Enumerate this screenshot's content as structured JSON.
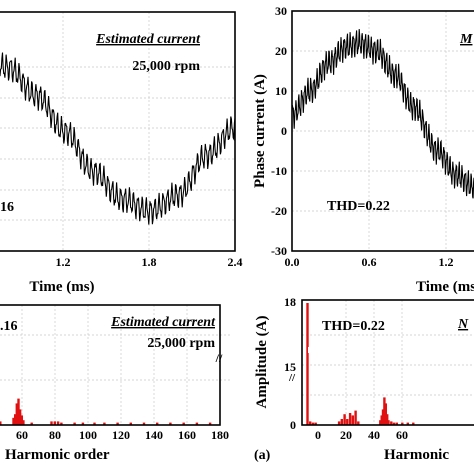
{
  "chart_data": [
    {
      "type": "line",
      "panel": "top-left",
      "xlabel": "Time (ms)",
      "x_ticks": [
        "1.2",
        "1.8",
        "2.4"
      ],
      "xlim": [
        0.6,
        2.4
      ],
      "ylim": [
        -30,
        30
      ],
      "legend": "Estimated current",
      "legend_color": "#1a9a3a",
      "speed_label": "25,000 rpm",
      "thd_label": "16",
      "line_color": "#000000",
      "series": [
        {
          "x": [
            0.6,
            0.8,
            1.0,
            1.2,
            1.4,
            1.6,
            1.8,
            2.0,
            2.2,
            2.4
          ],
          "y": [
            19,
            16,
            9,
            0,
            -10,
            -17,
            -20,
            -16,
            -6,
            1
          ]
        }
      ]
    },
    {
      "type": "line",
      "panel": "top-right",
      "xlabel": "Time (ms)",
      "ylabel": "Phase current (A)",
      "x_ticks": [
        "0.0",
        "0.6",
        "1.2"
      ],
      "y_ticks": [
        "-30",
        "-20",
        "-10",
        "0",
        "10",
        "20",
        "30"
      ],
      "xlim": [
        0,
        1.5
      ],
      "ylim": [
        -30,
        30
      ],
      "legend": "M",
      "legend_color": "#1f2fd0",
      "thd_label": "THD=0.22",
      "line_color": "#000000",
      "series": [
        {
          "x": [
            0.0,
            0.15,
            0.3,
            0.45,
            0.55,
            0.7,
            0.85,
            1.0,
            1.2,
            1.35,
            1.5
          ],
          "y": [
            4,
            10,
            17,
            21,
            22,
            20,
            14,
            6,
            -5,
            -11,
            -14
          ]
        }
      ]
    },
    {
      "type": "bar",
      "panel": "bottom-left",
      "xlabel": "Harmonic order",
      "x_ticks": [
        "60",
        "80",
        "100",
        "120",
        "140",
        "160",
        "180"
      ],
      "xlim": [
        45,
        180
      ],
      "legend": "Estimated current",
      "legend_color": "#1a9a3a",
      "speed_label": "25,000 rpm",
      "thd_label": ".16",
      "bar_color": "#e01010",
      "x": [
        47,
        55,
        56,
        57,
        58,
        59,
        60,
        61,
        66,
        78,
        80,
        82,
        84,
        92,
        97,
        104,
        110,
        118,
        126,
        134,
        142,
        150,
        158,
        166,
        174
      ],
      "values": [
        0.3,
        0.6,
        0.9,
        1.8,
        2.2,
        1.3,
        0.8,
        0.4,
        0.2,
        0.3,
        0.3,
        0.3,
        0.2,
        0.2,
        0.2,
        0.2,
        0.2,
        0.2,
        0.2,
        0.2,
        0.2,
        0.2,
        0.2,
        0.2,
        0.2
      ]
    },
    {
      "type": "bar",
      "panel": "bottom-right",
      "xlabel": "Harmonic",
      "ylabel": "Amplitude (A)",
      "x_ticks": [
        "0",
        "20",
        "40",
        "60"
      ],
      "y_ticks": [
        "18",
        "15",
        "0"
      ],
      "xlim": [
        -3,
        80
      ],
      "legend": "N",
      "legend_color": "#1f2fd0",
      "thd_label": "THD=0.22",
      "bar_color": "#e01010",
      "x": [
        1,
        3,
        5,
        7,
        24,
        26,
        28,
        30,
        32,
        34,
        36,
        38,
        54,
        55,
        56,
        57,
        58,
        59,
        60,
        62,
        64,
        66,
        70,
        74,
        78
      ],
      "values": [
        18,
        0.3,
        0.2,
        0.2,
        0.3,
        0.5,
        0.9,
        0.5,
        1.0,
        0.8,
        1.2,
        0.3,
        0.4,
        0.8,
        1.3,
        2.3,
        1.8,
        0.9,
        0.4,
        0.3,
        0.2,
        0.2,
        0.2,
        0.2,
        0.2
      ]
    }
  ],
  "figure_label": "(a)"
}
